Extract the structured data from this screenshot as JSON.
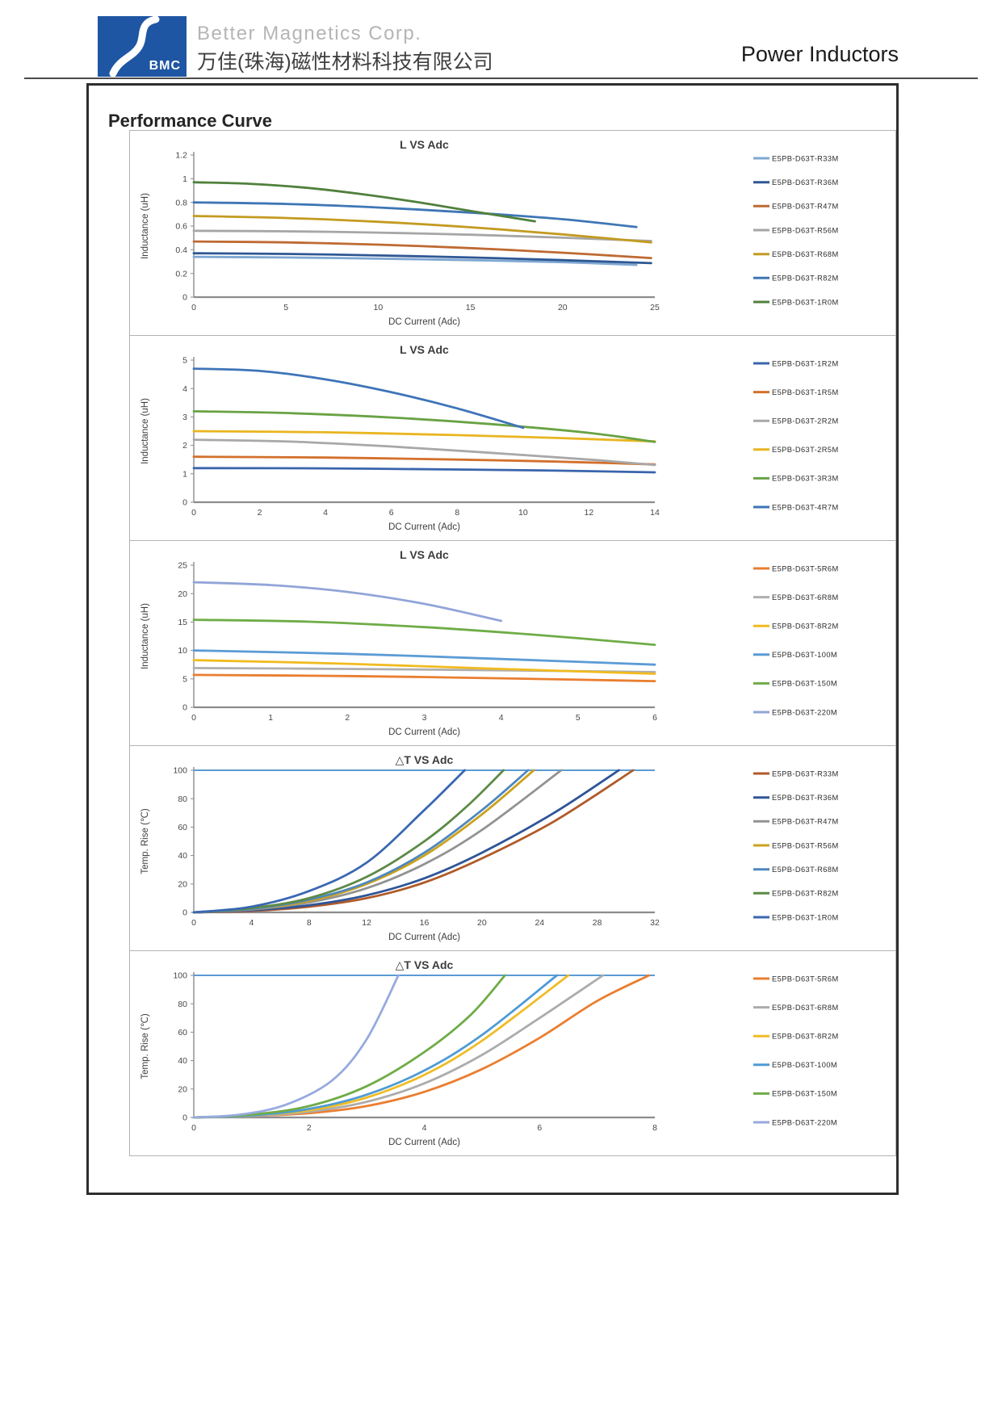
{
  "header": {
    "logo_text": "BMC",
    "logo_bg": "#1e56a3",
    "company_en": "Better Magnetics Corp.",
    "company_cn": "万佳(珠海)磁性材料科技有限公司",
    "product": "Power Inductors"
  },
  "page_title": "Performance Curve",
  "chart_data": [
    {
      "type": "line",
      "title": "L VS Adc",
      "xlabel": "DC Current (Adc)",
      "ylabel": "Inductance (uH)",
      "xlim": [
        0,
        25
      ],
      "xticks": [
        "0",
        "5",
        "10",
        "15",
        "20",
        "25"
      ],
      "ylim": [
        0,
        1.2
      ],
      "yticks": [
        "0",
        "0.2",
        "0.4",
        "0.6",
        "0.8",
        "1",
        "1.2"
      ],
      "grid": false,
      "legend_position": "right",
      "top_line_color": null,
      "series": [
        {
          "name": "E5PB-D63T-R33M",
          "color": "#7fa7d2",
          "points": [
            [
              0,
              0.34
            ],
            [
              5,
              0.335
            ],
            [
              10,
              0.325
            ],
            [
              15,
              0.312
            ],
            [
              20,
              0.295
            ],
            [
              24,
              0.272
            ]
          ]
        },
        {
          "name": "E5PB-D63T-R36M",
          "color": "#2e5793",
          "points": [
            [
              0,
              0.37
            ],
            [
              5,
              0.365
            ],
            [
              10,
              0.352
            ],
            [
              15,
              0.335
            ],
            [
              20,
              0.312
            ],
            [
              24.8,
              0.287
            ]
          ]
        },
        {
          "name": "E5PB-D63T-R47M",
          "color": "#be6a32",
          "points": [
            [
              0,
              0.47
            ],
            [
              5,
              0.462
            ],
            [
              10,
              0.443
            ],
            [
              15,
              0.414
            ],
            [
              20,
              0.375
            ],
            [
              24.8,
              0.33
            ]
          ]
        },
        {
          "name": "E5PB-D63T-R56M",
          "color": "#a6a6a6",
          "points": [
            [
              0,
              0.56
            ],
            [
              5,
              0.556
            ],
            [
              10,
              0.545
            ],
            [
              15,
              0.527
            ],
            [
              20,
              0.502
            ],
            [
              24.8,
              0.474
            ]
          ]
        },
        {
          "name": "E5PB-D63T-R68M",
          "color": "#c39b21",
          "points": [
            [
              0,
              0.685
            ],
            [
              5,
              0.668
            ],
            [
              10,
              0.636
            ],
            [
              15,
              0.59
            ],
            [
              20,
              0.53
            ],
            [
              24.8,
              0.462
            ]
          ]
        },
        {
          "name": "E5PB-D63T-R82M",
          "color": "#3e76b5",
          "points": [
            [
              0,
              0.8
            ],
            [
              5,
              0.787
            ],
            [
              10,
              0.757
            ],
            [
              15,
              0.714
            ],
            [
              20,
              0.658
            ],
            [
              24,
              0.592
            ]
          ]
        },
        {
          "name": "E5PB-D63T-1R0M",
          "color": "#50803c",
          "points": [
            [
              0,
              0.97
            ],
            [
              3,
              0.957
            ],
            [
              6,
              0.925
            ],
            [
              9,
              0.872
            ],
            [
              12,
              0.805
            ],
            [
              15,
              0.728
            ],
            [
              18.5,
              0.64
            ]
          ]
        }
      ]
    },
    {
      "type": "line",
      "title": "L VS Adc",
      "xlabel": "DC Current (Adc)",
      "ylabel": "Inductance (uH)",
      "xlim": [
        0,
        14
      ],
      "xticks": [
        "0",
        "2",
        "4",
        "6",
        "8",
        "10",
        "12",
        "14"
      ],
      "ylim": [
        0,
        5
      ],
      "yticks": [
        "0",
        "1",
        "2",
        "3",
        "4",
        "5"
      ],
      "grid": false,
      "legend_position": "right",
      "top_line_color": null,
      "series": [
        {
          "name": "E5PB-D63T-1R2M",
          "color": "#3a64ac",
          "points": [
            [
              0,
              1.2
            ],
            [
              4,
              1.19
            ],
            [
              8,
              1.15
            ],
            [
              11,
              1.11
            ],
            [
              14,
              1.05
            ]
          ]
        },
        {
          "name": "E5PB-D63T-1R5M",
          "color": "#d3702c",
          "points": [
            [
              0,
              1.6
            ],
            [
              4,
              1.57
            ],
            [
              8,
              1.5
            ],
            [
              11,
              1.43
            ],
            [
              14,
              1.33
            ]
          ]
        },
        {
          "name": "E5PB-D63T-2R2M",
          "color": "#a8a8a8",
          "points": [
            [
              0,
              2.2
            ],
            [
              3,
              2.13
            ],
            [
              6,
              1.96
            ],
            [
              9,
              1.74
            ],
            [
              12,
              1.5
            ],
            [
              14,
              1.31
            ]
          ]
        },
        {
          "name": "E5PB-D63T-2R5M",
          "color": "#e9b51f",
          "points": [
            [
              0,
              2.5
            ],
            [
              4,
              2.46
            ],
            [
              8,
              2.36
            ],
            [
              11,
              2.26
            ],
            [
              14,
              2.14
            ]
          ]
        },
        {
          "name": "E5PB-D63T-3R3M",
          "color": "#69a244",
          "points": [
            [
              0,
              3.2
            ],
            [
              3,
              3.13
            ],
            [
              6,
              2.98
            ],
            [
              9,
              2.75
            ],
            [
              12,
              2.44
            ],
            [
              14,
              2.12
            ]
          ]
        },
        {
          "name": "E5PB-D63T-4R7M",
          "color": "#3e74b8",
          "points": [
            [
              0,
              4.7
            ],
            [
              2,
              4.62
            ],
            [
              4,
              4.32
            ],
            [
              6,
              3.87
            ],
            [
              8,
              3.3
            ],
            [
              10,
              2.62
            ]
          ]
        }
      ]
    },
    {
      "type": "line",
      "title": "L VS Adc",
      "xlabel": "DC Current (Adc)",
      "ylabel": "Inductance (uH)",
      "xlim": [
        0,
        6
      ],
      "xticks": [
        "0",
        "1",
        "2",
        "3",
        "4",
        "5",
        "6"
      ],
      "ylim": [
        0,
        25
      ],
      "yticks": [
        "0",
        "5",
        "10",
        "15",
        "20",
        "25"
      ],
      "grid": false,
      "legend_position": "right",
      "top_line_color": null,
      "series": [
        {
          "name": "E5PB-D63T-5R6M",
          "color": "#ea7e30",
          "points": [
            [
              0,
              5.7
            ],
            [
              2,
              5.5
            ],
            [
              4,
              5.1
            ],
            [
              6,
              4.6
            ]
          ]
        },
        {
          "name": "E5PB-D63T-6R8M",
          "color": "#afafaf",
          "points": [
            [
              0,
              6.9
            ],
            [
              2,
              6.75
            ],
            [
              4,
              6.5
            ],
            [
              6,
              6.2
            ]
          ]
        },
        {
          "name": "E5PB-D63T-8R2M",
          "color": "#f1bb1f",
          "points": [
            [
              0,
              8.3
            ],
            [
              2,
              7.65
            ],
            [
              4,
              6.75
            ],
            [
              6,
              5.9
            ]
          ]
        },
        {
          "name": "E5PB-D63T-100M",
          "color": "#5b9bd5",
          "points": [
            [
              0,
              10
            ],
            [
              2,
              9.4
            ],
            [
              4,
              8.5
            ],
            [
              6,
              7.5
            ]
          ]
        },
        {
          "name": "E5PB-D63T-150M",
          "color": "#6fac47",
          "points": [
            [
              0,
              15.4
            ],
            [
              1.5,
              15.05
            ],
            [
              3,
              14.1
            ],
            [
              4.5,
              12.7
            ],
            [
              6,
              11
            ]
          ]
        },
        {
          "name": "E5PB-D63T-220M",
          "color": "#92a5d8",
          "points": [
            [
              0,
              22
            ],
            [
              1,
              21.5
            ],
            [
              2,
              20.3
            ],
            [
              3,
              18.2
            ],
            [
              4,
              15.2
            ]
          ]
        }
      ]
    },
    {
      "type": "line",
      "title": "△T VS Adc",
      "xlabel": "DC Current (Adc)",
      "ylabel": "Temp. Rise (℃)",
      "xlim": [
        0,
        32
      ],
      "xticks": [
        "0",
        "4",
        "8",
        "12",
        "16",
        "20",
        "24",
        "28",
        "32"
      ],
      "ylim": [
        0,
        100
      ],
      "yticks": [
        "0",
        "20",
        "40",
        "60",
        "80",
        "100"
      ],
      "grid": false,
      "legend_position": "right",
      "top_line_color": "#5b9bd5",
      "series": [
        {
          "name": "E5PB-D63T-R33M",
          "color": "#b05a28",
          "points": [
            [
              0,
              0
            ],
            [
              4,
              1
            ],
            [
              8,
              4
            ],
            [
              12,
              10
            ],
            [
              16,
              21
            ],
            [
              20,
              38
            ],
            [
              25,
              64
            ],
            [
              30.5,
              100
            ]
          ]
        },
        {
          "name": "E5PB-D63T-R36M",
          "color": "#2f5597",
          "points": [
            [
              0,
              0
            ],
            [
              4,
              1.5
            ],
            [
              8,
              5
            ],
            [
              12,
              12
            ],
            [
              16,
              24
            ],
            [
              20,
              42
            ],
            [
              25,
              70
            ],
            [
              29.5,
              100
            ]
          ]
        },
        {
          "name": "E5PB-D63T-R47M",
          "color": "#929292",
          "points": [
            [
              0,
              0
            ],
            [
              4,
              2
            ],
            [
              8,
              7
            ],
            [
              12,
              17
            ],
            [
              16,
              34
            ],
            [
              20,
              58
            ],
            [
              25.5,
              100
            ]
          ]
        },
        {
          "name": "E5PB-D63T-R56M",
          "color": "#cba21c",
          "points": [
            [
              0,
              0
            ],
            [
              4,
              2.5
            ],
            [
              8,
              8
            ],
            [
              12,
              20
            ],
            [
              16,
              40
            ],
            [
              20,
              69
            ],
            [
              23.6,
              100
            ]
          ]
        },
        {
          "name": "E5PB-D63T-R68M",
          "color": "#4e88be",
          "points": [
            [
              0,
              0
            ],
            [
              4,
              2.5
            ],
            [
              8,
              9
            ],
            [
              12,
              21
            ],
            [
              16,
              42
            ],
            [
              20,
              72
            ],
            [
              23.2,
              100
            ]
          ]
        },
        {
          "name": "E5PB-D63T-R82M",
          "color": "#5d8a46",
          "points": [
            [
              0,
              0
            ],
            [
              4,
              3
            ],
            [
              8,
              10
            ],
            [
              12,
              25
            ],
            [
              16,
              50
            ],
            [
              19,
              75
            ],
            [
              21.5,
              100
            ]
          ]
        },
        {
          "name": "E5PB-D63T-1R0M",
          "color": "#3a67b1",
          "points": [
            [
              0,
              0
            ],
            [
              4,
              4
            ],
            [
              8,
              15
            ],
            [
              12,
              35
            ],
            [
              16,
              72
            ],
            [
              18.8,
              100
            ]
          ]
        }
      ]
    },
    {
      "type": "line",
      "title": "△T VS Adc",
      "xlabel": "DC Current (Adc)",
      "ylabel": "Temp. Rise (℃)",
      "xlim": [
        0,
        8
      ],
      "xticks": [
        "0",
        "2",
        "4",
        "6",
        "8"
      ],
      "ylim": [
        0,
        100
      ],
      "yticks": [
        "0",
        "20",
        "40",
        "60",
        "80",
        "100"
      ],
      "grid": false,
      "legend_position": "right",
      "top_line_color": "#5b9bd5",
      "series": [
        {
          "name": "E5PB-D63T-5R6M",
          "color": "#ea7e30",
          "points": [
            [
              0,
              0
            ],
            [
              1,
              1
            ],
            [
              2,
              3
            ],
            [
              3,
              8
            ],
            [
              4,
              18
            ],
            [
              5,
              34
            ],
            [
              6,
              56
            ],
            [
              7,
              82
            ],
            [
              7.9,
              100
            ]
          ]
        },
        {
          "name": "E5PB-D63T-6R8M",
          "color": "#acacac",
          "points": [
            [
              0,
              0
            ],
            [
              1,
              1
            ],
            [
              2,
              4
            ],
            [
              3,
              11
            ],
            [
              4,
              24
            ],
            [
              5,
              44
            ],
            [
              6,
              70
            ],
            [
              7.1,
              100
            ]
          ]
        },
        {
          "name": "E5PB-D63T-8R2M",
          "color": "#f0bc24",
          "points": [
            [
              0,
              0
            ],
            [
              1,
              1.5
            ],
            [
              2,
              5
            ],
            [
              3,
              14
            ],
            [
              4,
              30
            ],
            [
              5,
              54
            ],
            [
              6.5,
              100
            ]
          ]
        },
        {
          "name": "E5PB-D63T-100M",
          "color": "#4e9bd5",
          "points": [
            [
              0,
              0
            ],
            [
              1,
              1.5
            ],
            [
              2,
              6
            ],
            [
              3,
              16
            ],
            [
              4,
              33
            ],
            [
              5,
              58
            ],
            [
              6.3,
              100
            ]
          ]
        },
        {
          "name": "E5PB-D63T-150M",
          "color": "#6fac47",
          "points": [
            [
              0,
              0
            ],
            [
              1,
              2
            ],
            [
              2,
              8
            ],
            [
              3,
              22
            ],
            [
              4,
              46
            ],
            [
              4.8,
              72
            ],
            [
              5.4,
              100
            ]
          ]
        },
        {
          "name": "E5PB-D63T-220M",
          "color": "#97aade",
          "points": [
            [
              0,
              0
            ],
            [
              0.8,
              2
            ],
            [
              1.6,
              9
            ],
            [
              2.4,
              26
            ],
            [
              3,
              55
            ],
            [
              3.55,
              100
            ]
          ]
        }
      ]
    }
  ]
}
